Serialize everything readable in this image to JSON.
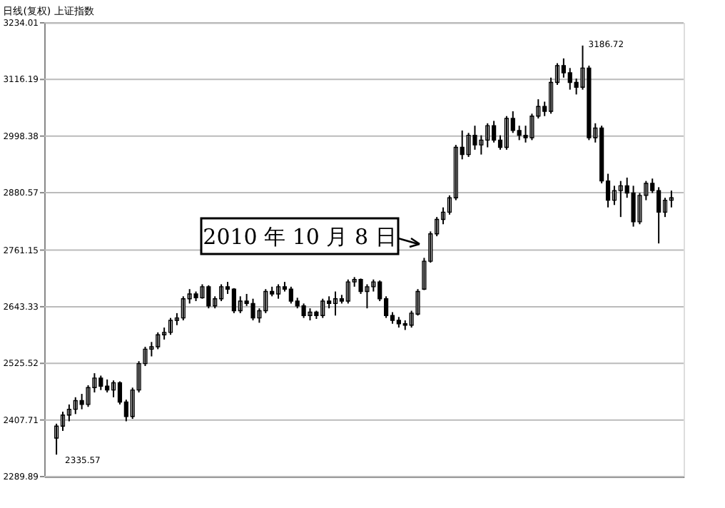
{
  "chart_data": {
    "type": "candlestick",
    "title": "日线(复权) 上证指数",
    "categories": [
      null,
      null,
      null,
      null,
      null,
      null,
      null,
      null,
      null,
      null,
      null,
      null,
      null,
      null,
      null,
      null,
      null,
      null,
      null,
      null,
      null,
      null,
      null,
      null,
      null,
      null,
      null,
      null,
      null,
      null,
      null,
      null,
      null,
      null,
      null,
      null,
      null,
      null,
      null,
      null,
      null,
      null,
      null,
      null,
      null,
      null,
      null,
      null,
      null,
      null,
      null,
      null,
      null,
      null,
      null,
      null,
      null,
      null,
      null,
      null,
      null,
      null,
      null,
      null,
      null,
      null,
      null,
      null,
      null,
      null,
      null,
      null,
      null,
      null,
      null,
      null,
      null,
      null,
      null,
      null,
      null,
      null,
      null,
      null,
      null,
      null,
      null,
      null,
      null,
      null,
      null,
      null,
      null,
      null,
      null,
      null,
      null,
      null
    ],
    "series": [
      {
        "color": "#000000",
        "ohlc": [
          [
            2370,
            2400,
            2335.57,
            2395
          ],
          [
            2395,
            2425,
            2385,
            2418
          ],
          [
            2418,
            2440,
            2405,
            2430
          ],
          [
            2430,
            2455,
            2420,
            2448
          ],
          [
            2448,
            2462,
            2430,
            2440
          ],
          [
            2440,
            2480,
            2435,
            2475
          ],
          [
            2475,
            2505,
            2465,
            2495
          ],
          [
            2495,
            2500,
            2470,
            2478
          ],
          [
            2478,
            2492,
            2465,
            2470
          ],
          [
            2470,
            2490,
            2455,
            2485
          ],
          [
            2485,
            2488,
            2440,
            2445
          ],
          [
            2445,
            2450,
            2405,
            2415
          ],
          [
            2415,
            2475,
            2410,
            2470
          ],
          [
            2470,
            2530,
            2465,
            2525
          ],
          [
            2525,
            2560,
            2520,
            2555
          ],
          [
            2555,
            2570,
            2540,
            2560
          ],
          [
            2560,
            2590,
            2555,
            2585
          ],
          [
            2585,
            2600,
            2575,
            2590
          ],
          [
            2590,
            2620,
            2585,
            2615
          ],
          [
            2615,
            2630,
            2605,
            2620
          ],
          [
            2620,
            2665,
            2615,
            2660
          ],
          [
            2660,
            2680,
            2650,
            2670
          ],
          [
            2670,
            2675,
            2655,
            2662
          ],
          [
            2662,
            2690,
            2660,
            2685
          ],
          [
            2685,
            2688,
            2640,
            2645
          ],
          [
            2645,
            2665,
            2640,
            2660
          ],
          [
            2660,
            2690,
            2655,
            2685
          ],
          [
            2685,
            2695,
            2670,
            2680
          ],
          [
            2680,
            2682,
            2630,
            2635
          ],
          [
            2635,
            2665,
            2630,
            2655
          ],
          [
            2655,
            2670,
            2645,
            2650
          ],
          [
            2650,
            2660,
            2615,
            2620
          ],
          [
            2620,
            2640,
            2610,
            2635
          ],
          [
            2635,
            2680,
            2630,
            2675
          ],
          [
            2675,
            2685,
            2665,
            2670
          ],
          [
            2670,
            2690,
            2660,
            2685
          ],
          [
            2685,
            2695,
            2675,
            2680
          ],
          [
            2680,
            2685,
            2650,
            2655
          ],
          [
            2655,
            2662,
            2640,
            2645
          ],
          [
            2645,
            2650,
            2620,
            2625
          ],
          [
            2625,
            2640,
            2615,
            2632
          ],
          [
            2632,
            2635,
            2618,
            2625
          ],
          [
            2625,
            2660,
            2620,
            2655
          ],
          [
            2655,
            2665,
            2640,
            2650
          ],
          [
            2650,
            2675,
            2625,
            2660
          ],
          [
            2660,
            2668,
            2650,
            2655
          ],
          [
            2655,
            2700,
            2650,
            2695
          ],
          [
            2695,
            2705,
            2685,
            2700
          ],
          [
            2700,
            2702,
            2670,
            2675
          ],
          [
            2675,
            2690,
            2640,
            2685
          ],
          [
            2685,
            2700,
            2675,
            2695
          ],
          [
            2695,
            2698,
            2655,
            2660
          ],
          [
            2660,
            2665,
            2620,
            2625
          ],
          [
            2625,
            2632,
            2608,
            2615
          ],
          [
            2615,
            2622,
            2600,
            2608
          ],
          [
            2608,
            2615,
            2595,
            2605
          ],
          [
            2605,
            2635,
            2600,
            2630
          ],
          [
            2628,
            2680,
            2625,
            2675
          ],
          [
            2680,
            2745,
            2678,
            2738
          ],
          [
            2738,
            2800,
            2735,
            2795
          ],
          [
            2795,
            2830,
            2790,
            2825
          ],
          [
            2825,
            2850,
            2815,
            2840
          ],
          [
            2840,
            2875,
            2835,
            2870
          ],
          [
            2870,
            2980,
            2865,
            2975
          ],
          [
            2975,
            3010,
            2950,
            2960
          ],
          [
            2960,
            3005,
            2955,
            3000
          ],
          [
            3000,
            3020,
            2970,
            2980
          ],
          [
            2980,
            3000,
            2960,
            2990
          ],
          [
            2990,
            3025,
            2975,
            3020
          ],
          [
            3020,
            3030,
            2985,
            2990
          ],
          [
            2990,
            3000,
            2970,
            2975
          ],
          [
            2975,
            3040,
            2970,
            3035
          ],
          [
            3035,
            3050,
            3005,
            3010
          ],
          [
            3010,
            3020,
            2990,
            3000
          ],
          [
            3000,
            3020,
            2985,
            2995
          ],
          [
            2995,
            3045,
            2990,
            3040
          ],
          [
            3040,
            3075,
            3035,
            3060
          ],
          [
            3060,
            3070,
            3040,
            3050
          ],
          [
            3050,
            3120,
            3045,
            3110
          ],
          [
            3110,
            3150,
            3105,
            3145
          ],
          [
            3145,
            3160,
            3120,
            3130
          ],
          [
            3130,
            3140,
            3095,
            3110
          ],
          [
            3110,
            3118,
            3085,
            3100
          ],
          [
            3100,
            3186.72,
            3095,
            3140
          ],
          [
            3140,
            3145,
            2990,
            2995
          ],
          [
            2995,
            3025,
            2985,
            3015
          ],
          [
            3015,
            3020,
            2900,
            2905
          ],
          [
            2905,
            2920,
            2850,
            2865
          ],
          [
            2865,
            2895,
            2855,
            2885
          ],
          [
            2885,
            2905,
            2830,
            2895
          ],
          [
            2895,
            2912,
            2870,
            2880
          ],
          [
            2880,
            2895,
            2810,
            2820
          ],
          [
            2820,
            2880,
            2815,
            2875
          ],
          [
            2875,
            2905,
            2865,
            2900
          ],
          [
            2900,
            2910,
            2880,
            2885
          ],
          [
            2885,
            2892,
            2775,
            2840
          ],
          [
            2840,
            2870,
            2830,
            2865
          ],
          [
            2865,
            2885,
            2850,
            2870
          ]
        ]
      }
    ],
    "ylim": [
      2289.89,
      3234.01
    ],
    "yticks": [
      2289.89,
      2407.71,
      2525.52,
      2643.33,
      2761.15,
      2880.57,
      2998.38,
      3116.19,
      3234.01
    ],
    "grid": "y",
    "tick_labels": "y",
    "legend": false,
    "annotations": [
      "3186.72",
      "2335.57",
      "2010 年 10 月 8 日"
    ]
  }
}
